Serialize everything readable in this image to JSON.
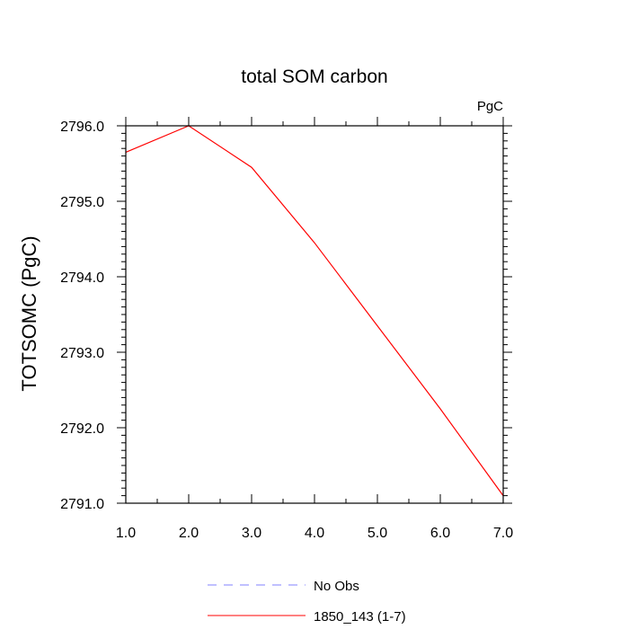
{
  "chart_data": {
    "type": "line",
    "title": "total SOM carbon",
    "units_label": "PgC",
    "ylabel": "TOTSOMC  (PgC)",
    "xlabel": "",
    "xlim": [
      1.0,
      7.0
    ],
    "ylim": [
      2791.0,
      2796.0
    ],
    "x_ticks": [
      "1.0",
      "2.0",
      "3.0",
      "4.0",
      "5.0",
      "6.0",
      "7.0"
    ],
    "y_ticks": [
      "2791.0",
      "2792.0",
      "2793.0",
      "2794.0",
      "2795.0",
      "2796.0"
    ],
    "grid": false,
    "legend_position": "bottom-center",
    "series": [
      {
        "name": "1850_143 (1-7)",
        "color": "#ff0000",
        "style": "solid",
        "x": [
          1,
          2,
          3,
          4,
          5,
          6,
          7
        ],
        "values": [
          2795.65,
          2796.0,
          2795.45,
          2794.45,
          2793.35,
          2792.25,
          2791.1
        ]
      }
    ],
    "legend": [
      {
        "label": "No Obs",
        "color": "#8080ff",
        "style": "dashed"
      },
      {
        "label": "1850_143 (1-7)",
        "color": "#ff0000",
        "style": "solid"
      }
    ]
  }
}
